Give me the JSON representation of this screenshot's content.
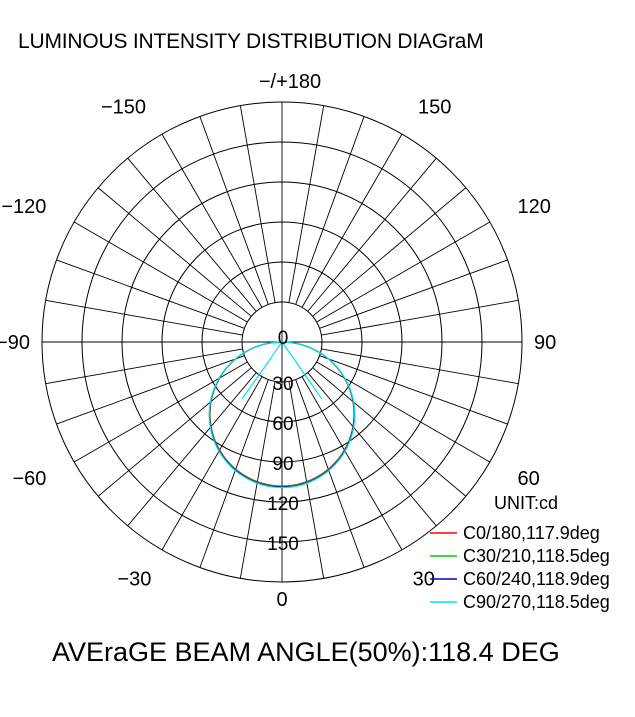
{
  "chart_data": {
    "type": "polar-line",
    "title": "LUMINOUS INTENSITY DISTRIBUTION DIAGraM",
    "angle_labels": [
      {
        "angle": 180,
        "text": "−/+180"
      },
      {
        "angle": -150,
        "text": "−150"
      },
      {
        "angle": 150,
        "text": "150"
      },
      {
        "angle": -120,
        "text": "−120"
      },
      {
        "angle": 120,
        "text": "120"
      },
      {
        "angle": -90,
        "text": "−90"
      },
      {
        "angle": 90,
        "text": "90"
      },
      {
        "angle": -60,
        "text": "−60"
      },
      {
        "angle": 60,
        "text": "60"
      },
      {
        "angle": -30,
        "text": "−30"
      },
      {
        "angle": 30,
        "text": "30"
      },
      {
        "angle": 0,
        "text": "0"
      }
    ],
    "radial_ticks": [
      0,
      30,
      60,
      90,
      120,
      150
    ],
    "radial_tick_labels": [
      "0",
      "30",
      "60",
      "90",
      "120",
      "150"
    ],
    "r_max": 180,
    "unit_label": "UNIT:cd",
    "legend_position": "bottom-right",
    "series": [
      {
        "name": "C0/180,117.9deg",
        "color": "#ff0000",
        "peak": 108,
        "beam_angle": 117.9
      },
      {
        "name": "C30/210,118.5deg",
        "color": "#00cc00",
        "peak": 108,
        "beam_angle": 118.5
      },
      {
        "name": "C60/240,118.9deg",
        "color": "#0000cc",
        "peak": 108,
        "beam_angle": 118.9
      },
      {
        "name": "C90/270,118.5deg",
        "color": "#00e5ee",
        "peak": 108,
        "beam_angle": 118.5
      }
    ],
    "footer": "AVEraGE BEAM ANGLE(50%):118.4 DEG"
  }
}
